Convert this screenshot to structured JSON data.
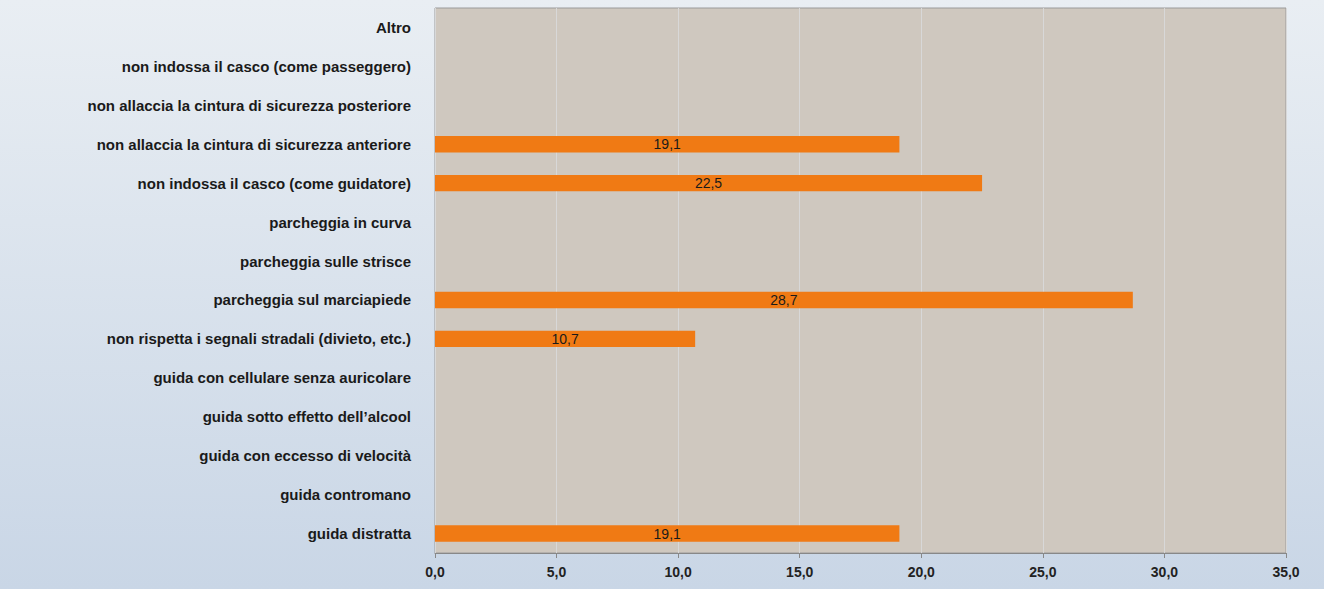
{
  "chart_data": {
    "type": "bar",
    "orientation": "horizontal",
    "categories": [
      "guida distratta",
      "guida contromano",
      "guida con eccesso di velocità",
      "guida sotto effetto dell’alcool",
      "guida con cellulare senza auricolare",
      "non rispetta i segnali stradali (divieto, etc.)",
      "parcheggia sul marciapiede",
      "parcheggia sulle strisce",
      "parcheggia in curva",
      "non indossa il casco (come guidatore)",
      "non allaccia la cintura di sicurezza anteriore",
      "non allaccia la cintura di sicurezza posteriore",
      "non indossa il casco (come passeggero)",
      "Altro"
    ],
    "values": [
      19.1,
      null,
      null,
      null,
      null,
      10.7,
      28.7,
      null,
      null,
      22.5,
      19.1,
      null,
      null,
      null
    ],
    "value_labels": [
      "19,1",
      null,
      null,
      null,
      null,
      "10,7",
      "28,7",
      null,
      null,
      "22,5",
      "19,1",
      null,
      null,
      null
    ],
    "data_labels": true,
    "color": "#f07a14",
    "xlim": [
      0,
      35
    ],
    "xticks": [
      {
        "value": 0,
        "label": "0,0"
      },
      {
        "value": 5,
        "label": "5,0"
      },
      {
        "value": 10,
        "label": "10,0"
      },
      {
        "value": 15,
        "label": "15,0"
      },
      {
        "value": 20,
        "label": "20,0"
      },
      {
        "value": 25,
        "label": "25,0"
      },
      {
        "value": 30,
        "label": "30,0"
      },
      {
        "value": 35,
        "label": "35,0"
      }
    ],
    "grid": true
  }
}
